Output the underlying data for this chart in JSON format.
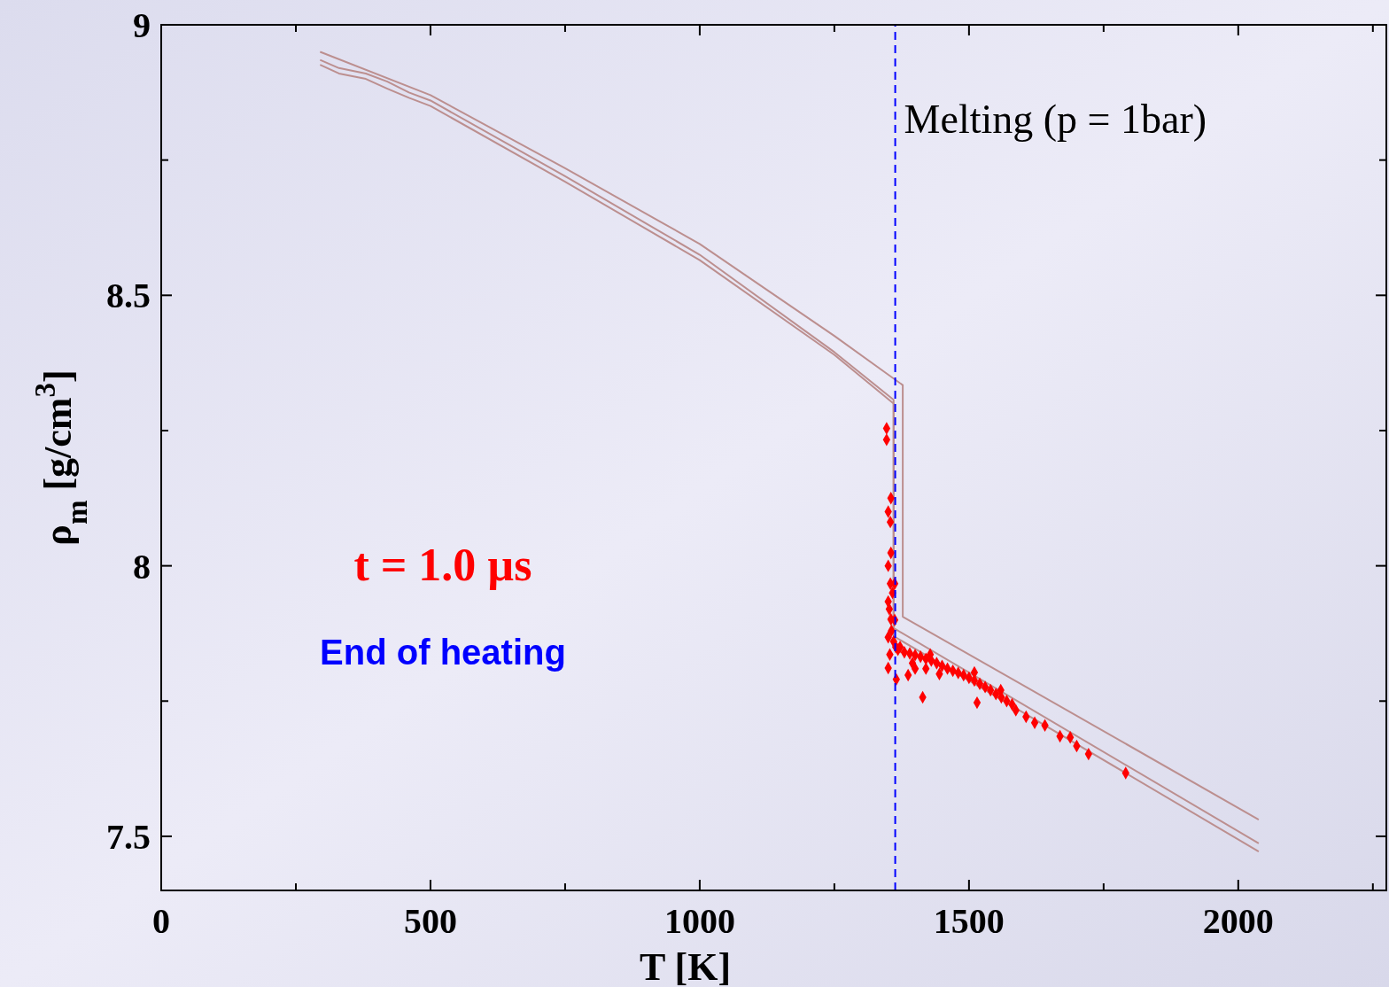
{
  "chart_data": {
    "type": "line",
    "xlabel": "T [K]",
    "ylabel": "ρ$_{m}$ [g/cm$^{3}$]",
    "xlim": [
      0,
      2275
    ],
    "ylim": [
      7.4,
      9
    ],
    "xticks": [
      0,
      {
        "value": 250,
        "label": null
      },
      500,
      {
        "value": 750,
        "label": null
      },
      1000,
      {
        "value": 1250,
        "label": null
      },
      1500,
      {
        "value": 1750,
        "label": null
      },
      2000,
      {
        "value": 2250,
        "label": null
      }
    ],
    "yticks": [
      7.5,
      {
        "value": 7.75,
        "label": null
      },
      8,
      {
        "value": 8.25,
        "label": null
      },
      8.5,
      {
        "value": 8.75,
        "label": null
      },
      9
    ],
    "grid": false,
    "series": [
      {
        "color": "#bc8f8f",
        "x": [
          295,
          500,
          750,
          1000,
          1250,
          1377,
          1377,
          2038
        ],
        "values": [
          8.95,
          8.87,
          8.735,
          8.595,
          8.425,
          8.334,
          7.906,
          7.531
        ]
      },
      {
        "color": "#bc8f8f",
        "x": [
          295,
          330,
          380,
          420,
          460,
          500,
          750,
          1000,
          1250,
          1360,
          1360,
          2038
        ],
        "values": [
          8.935,
          8.92,
          8.91,
          8.895,
          8.875,
          8.86,
          8.72,
          8.575,
          8.395,
          8.307,
          7.885,
          7.487
        ]
      },
      {
        "color": "#bc8f8f",
        "x": [
          295,
          330,
          380,
          420,
          460,
          500,
          750,
          1000,
          1250,
          1360,
          1360,
          2038
        ],
        "values": [
          8.926,
          8.91,
          8.9,
          8.882,
          8.865,
          8.85,
          8.71,
          8.565,
          8.39,
          8.3,
          7.87,
          7.472
        ]
      },
      {
        "type": "scatter",
        "color": "#ff0000",
        "marker": "diamond",
        "x": [
          1347,
          1347,
          1355,
          1350,
          1354,
          1355,
          1350,
          1354,
          1350,
          1355,
          1350,
          1353,
          1350,
          1365,
          1362,
          1362,
          1358,
          1352,
          1356,
          1360,
          1364,
          1368,
          1372,
          1380,
          1390,
          1400,
          1410,
          1420,
          1430,
          1440,
          1450,
          1460,
          1470,
          1480,
          1490,
          1500,
          1510,
          1520,
          1530,
          1540,
          1550,
          1560,
          1570,
          1580,
          1414,
          1515,
          1387,
          1400,
          1669,
          1688,
          1700,
          1722,
          1791,
          1641,
          1622,
          1606,
          1587,
          1428,
          1510,
          1559,
          1395,
          1420,
          1445
        ],
        "values": [
          8.254,
          8.233,
          8.125,
          8.1,
          8.081,
          8.024,
          8.0,
          7.967,
          7.934,
          7.901,
          7.868,
          7.836,
          7.811,
          7.79,
          7.9,
          7.967,
          7.95,
          7.92,
          7.88,
          7.86,
          7.85,
          7.845,
          7.85,
          7.84,
          7.838,
          7.835,
          7.832,
          7.828,
          7.825,
          7.82,
          7.815,
          7.81,
          7.806,
          7.802,
          7.798,
          7.793,
          7.788,
          7.782,
          7.776,
          7.77,
          7.763,
          7.757,
          7.75,
          7.744,
          7.757,
          7.747,
          7.798,
          7.81,
          7.685,
          7.683,
          7.667,
          7.652,
          7.617,
          7.705,
          7.71,
          7.721,
          7.733,
          7.836,
          7.803,
          7.77,
          7.82,
          7.81,
          7.8
        ]
      }
    ],
    "ref_lines": [
      {
        "axis": "x",
        "value": 1363,
        "color": "#0000ff",
        "line_style": "dashed"
      }
    ],
    "annotations": [
      "t = 1.0 µs",
      "End of heating",
      {
        "text": "Melting (p = 1bar)",
        "x": 1363,
        "y": 8.8
      }
    ]
  }
}
